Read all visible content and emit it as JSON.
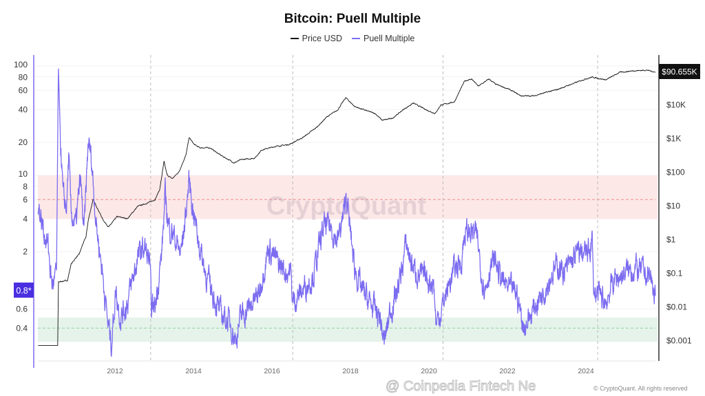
{
  "chart_data": {
    "type": "line",
    "title": "Bitcoin: Puell Multiple",
    "legend": {
      "placement": "top-center",
      "entries": [
        "Price USD",
        "Puell Multiple"
      ]
    },
    "x_ticks": [
      "2012",
      "2014",
      "2016",
      "2018",
      "2020",
      "2022",
      "2024"
    ],
    "xlim": [
      2010.04,
      2025.85
    ],
    "left_axis": {
      "scale": "log",
      "ylim": [
        0.25,
        130
      ],
      "ticks": [
        "100",
        "80",
        "60",
        "40",
        "20",
        "10",
        "8",
        "6",
        "4",
        "2",
        "0.6",
        "0.4"
      ],
      "tick_values": [
        100,
        80,
        60,
        40,
        20,
        10,
        8,
        6,
        4,
        2,
        0.6,
        0.4
      ],
      "current_label": "0.8*"
    },
    "right_axis": {
      "scale": "log",
      "ticks": [
        "$10K",
        "$1K",
        "$100",
        "$10",
        "$1",
        "$0.1",
        "$0.01",
        "$0.001"
      ],
      "tick_values": [
        10000,
        1000,
        100,
        10,
        1,
        0.1,
        0.01,
        0.001
      ],
      "current_label": "$90.655K"
    },
    "bands": [
      {
        "range": [
          4,
          10
        ],
        "line": 6,
        "color": "#fde8e8",
        "line_color": "#f08a8a"
      },
      {
        "range": [
          0.3,
          0.5
        ],
        "line": 0.4,
        "color": "#e5f3ea",
        "line_color": "#8fd39b"
      }
    ],
    "halving_lines": [
      2012.91,
      2016.53,
      2020.36,
      2024.3
    ],
    "series": [
      {
        "name": "Price USD",
        "axis": "right",
        "color": "#111111",
        "points": [
          [
            2010.04,
            0.0007
          ],
          [
            2010.54,
            0.0007
          ],
          [
            2010.56,
            0.054
          ],
          [
            2010.79,
            0.06
          ],
          [
            2010.88,
            0.18
          ],
          [
            2011.0,
            0.28
          ],
          [
            2011.09,
            0.36
          ],
          [
            2011.18,
            0.72
          ],
          [
            2011.26,
            1.15
          ],
          [
            2011.32,
            3.7
          ],
          [
            2011.44,
            15
          ],
          [
            2011.53,
            9.5
          ],
          [
            2011.7,
            3.7
          ],
          [
            2011.84,
            2.3
          ],
          [
            2012.05,
            4.7
          ],
          [
            2012.32,
            4.1
          ],
          [
            2012.58,
            9.5
          ],
          [
            2012.84,
            12
          ],
          [
            2013.02,
            15
          ],
          [
            2013.14,
            30
          ],
          [
            2013.25,
            200
          ],
          [
            2013.33,
            80
          ],
          [
            2013.46,
            63
          ],
          [
            2013.63,
            100
          ],
          [
            2013.81,
            320
          ],
          [
            2013.89,
            1050
          ],
          [
            2014.02,
            650
          ],
          [
            2014.16,
            520
          ],
          [
            2014.42,
            520
          ],
          [
            2014.68,
            320
          ],
          [
            2015.04,
            185
          ],
          [
            2015.21,
            230
          ],
          [
            2015.56,
            255
          ],
          [
            2015.74,
            450
          ],
          [
            2016.09,
            570
          ],
          [
            2016.44,
            650
          ],
          [
            2016.79,
            1050
          ],
          [
            2017.14,
            2100
          ],
          [
            2017.4,
            4300
          ],
          [
            2017.67,
            6800
          ],
          [
            2017.88,
            16000
          ],
          [
            2018.11,
            8700
          ],
          [
            2018.37,
            6800
          ],
          [
            2018.63,
            5400
          ],
          [
            2018.81,
            3400
          ],
          [
            2019.07,
            3900
          ],
          [
            2019.33,
            6800
          ],
          [
            2019.6,
            11000
          ],
          [
            2019.95,
            6800
          ],
          [
            2020.16,
            5400
          ],
          [
            2020.3,
            9600
          ],
          [
            2020.65,
            12000
          ],
          [
            2020.91,
            50000
          ],
          [
            2021.09,
            57000
          ],
          [
            2021.26,
            35000
          ],
          [
            2021.53,
            57000
          ],
          [
            2021.7,
            40000
          ],
          [
            2022.05,
            28000
          ],
          [
            2022.35,
            18000
          ],
          [
            2022.67,
            18000
          ],
          [
            2022.93,
            22000
          ],
          [
            2023.28,
            28000
          ],
          [
            2023.63,
            40000
          ],
          [
            2023.98,
            57000
          ],
          [
            2024.16,
            65000
          ],
          [
            2024.51,
            54000
          ],
          [
            2024.86,
            90000
          ],
          [
            2025.21,
            100000
          ],
          [
            2025.56,
            105000
          ],
          [
            2025.77,
            90655
          ]
        ]
      },
      {
        "name": "Puell Multiple",
        "axis": "left",
        "color": "#7b6cf0",
        "points": [
          [
            2010.04,
            5.6
          ],
          [
            2010.12,
            3.9
          ],
          [
            2010.3,
            2.2
          ],
          [
            2010.39,
            1.0
          ],
          [
            2010.51,
            1.2
          ],
          [
            2010.56,
            94
          ],
          [
            2010.61,
            22
          ],
          [
            2010.68,
            6
          ],
          [
            2010.77,
            5.2
          ],
          [
            2010.82,
            15
          ],
          [
            2010.88,
            4.5
          ],
          [
            2011.0,
            3.4
          ],
          [
            2011.12,
            9.3
          ],
          [
            2011.21,
            2.9
          ],
          [
            2011.32,
            20.6
          ],
          [
            2011.4,
            14
          ],
          [
            2011.53,
            3.4
          ],
          [
            2011.67,
            1.4
          ],
          [
            2011.82,
            0.44
          ],
          [
            2011.91,
            0.29
          ],
          [
            2012.02,
            0.9
          ],
          [
            2012.14,
            0.5
          ],
          [
            2012.32,
            0.69
          ],
          [
            2012.58,
            1.76
          ],
          [
            2012.75,
            2.2
          ],
          [
            2012.88,
            1.6
          ],
          [
            2012.93,
            0.6
          ],
          [
            2013.02,
            0.64
          ],
          [
            2013.19,
            1.9
          ],
          [
            2013.28,
            6.5
          ],
          [
            2013.37,
            3.4
          ],
          [
            2013.49,
            2.9
          ],
          [
            2013.67,
            1.9
          ],
          [
            2013.77,
            3.4
          ],
          [
            2013.89,
            9
          ],
          [
            2013.98,
            5.2
          ],
          [
            2014.16,
            2.2
          ],
          [
            2014.33,
            1.2
          ],
          [
            2014.68,
            0.55
          ],
          [
            2014.95,
            0.44
          ],
          [
            2015.07,
            0.31
          ],
          [
            2015.21,
            0.51
          ],
          [
            2015.39,
            0.6
          ],
          [
            2015.65,
            0.79
          ],
          [
            2015.91,
            2.2
          ],
          [
            2016.18,
            1.5
          ],
          [
            2016.4,
            1.3
          ],
          [
            2016.47,
            1.4
          ],
          [
            2016.53,
            0.69
          ],
          [
            2016.79,
            0.9
          ],
          [
            2017.05,
            1.2
          ],
          [
            2017.32,
            3.4
          ],
          [
            2017.49,
            3.4
          ],
          [
            2017.67,
            2.5
          ],
          [
            2017.84,
            4.5
          ],
          [
            2017.89,
            7
          ],
          [
            2017.98,
            3.4
          ],
          [
            2018.11,
            1.4
          ],
          [
            2018.28,
            0.9
          ],
          [
            2018.54,
            0.64
          ],
          [
            2018.75,
            0.51
          ],
          [
            2018.86,
            0.29
          ],
          [
            2018.98,
            0.51
          ],
          [
            2019.25,
            1.06
          ],
          [
            2019.42,
            2.35
          ],
          [
            2019.6,
            1.4
          ],
          [
            2019.86,
            1.14
          ],
          [
            2020.12,
            1.06
          ],
          [
            2020.18,
            0.44
          ],
          [
            2020.26,
            0.51
          ],
          [
            2020.47,
            0.9
          ],
          [
            2020.65,
            1.4
          ],
          [
            2020.82,
            1.6
          ],
          [
            2020.91,
            2.9
          ],
          [
            2021.09,
            3.1
          ],
          [
            2021.23,
            2.7
          ],
          [
            2021.35,
            1.2
          ],
          [
            2021.44,
            0.9
          ],
          [
            2021.56,
            1.5
          ],
          [
            2021.7,
            1.6
          ],
          [
            2021.88,
            1.06
          ],
          [
            2022.05,
            0.9
          ],
          [
            2022.23,
            0.85
          ],
          [
            2022.32,
            0.6
          ],
          [
            2022.4,
            0.41
          ],
          [
            2022.58,
            0.51
          ],
          [
            2022.75,
            0.69
          ],
          [
            2022.93,
            0.9
          ],
          [
            2023.11,
            1.2
          ],
          [
            2023.28,
            1.5
          ],
          [
            2023.46,
            1.3
          ],
          [
            2023.63,
            1.6
          ],
          [
            2023.81,
            2.0
          ],
          [
            2024.07,
            1.9
          ],
          [
            2024.16,
            2.7
          ],
          [
            2024.19,
            0.9
          ],
          [
            2024.33,
            0.79
          ],
          [
            2024.51,
            0.69
          ],
          [
            2024.68,
            1.06
          ],
          [
            2024.86,
            1.2
          ],
          [
            2025.21,
            1.4
          ],
          [
            2025.47,
            1.3
          ],
          [
            2025.65,
            1.14
          ],
          [
            2025.77,
            0.79
          ]
        ]
      }
    ]
  },
  "watermarks": {
    "plot": "CryptoQuant",
    "overlay": "@ Coinpedia Fintech Ne",
    "copyright": "© CryptoQuant. All rights reserved"
  }
}
